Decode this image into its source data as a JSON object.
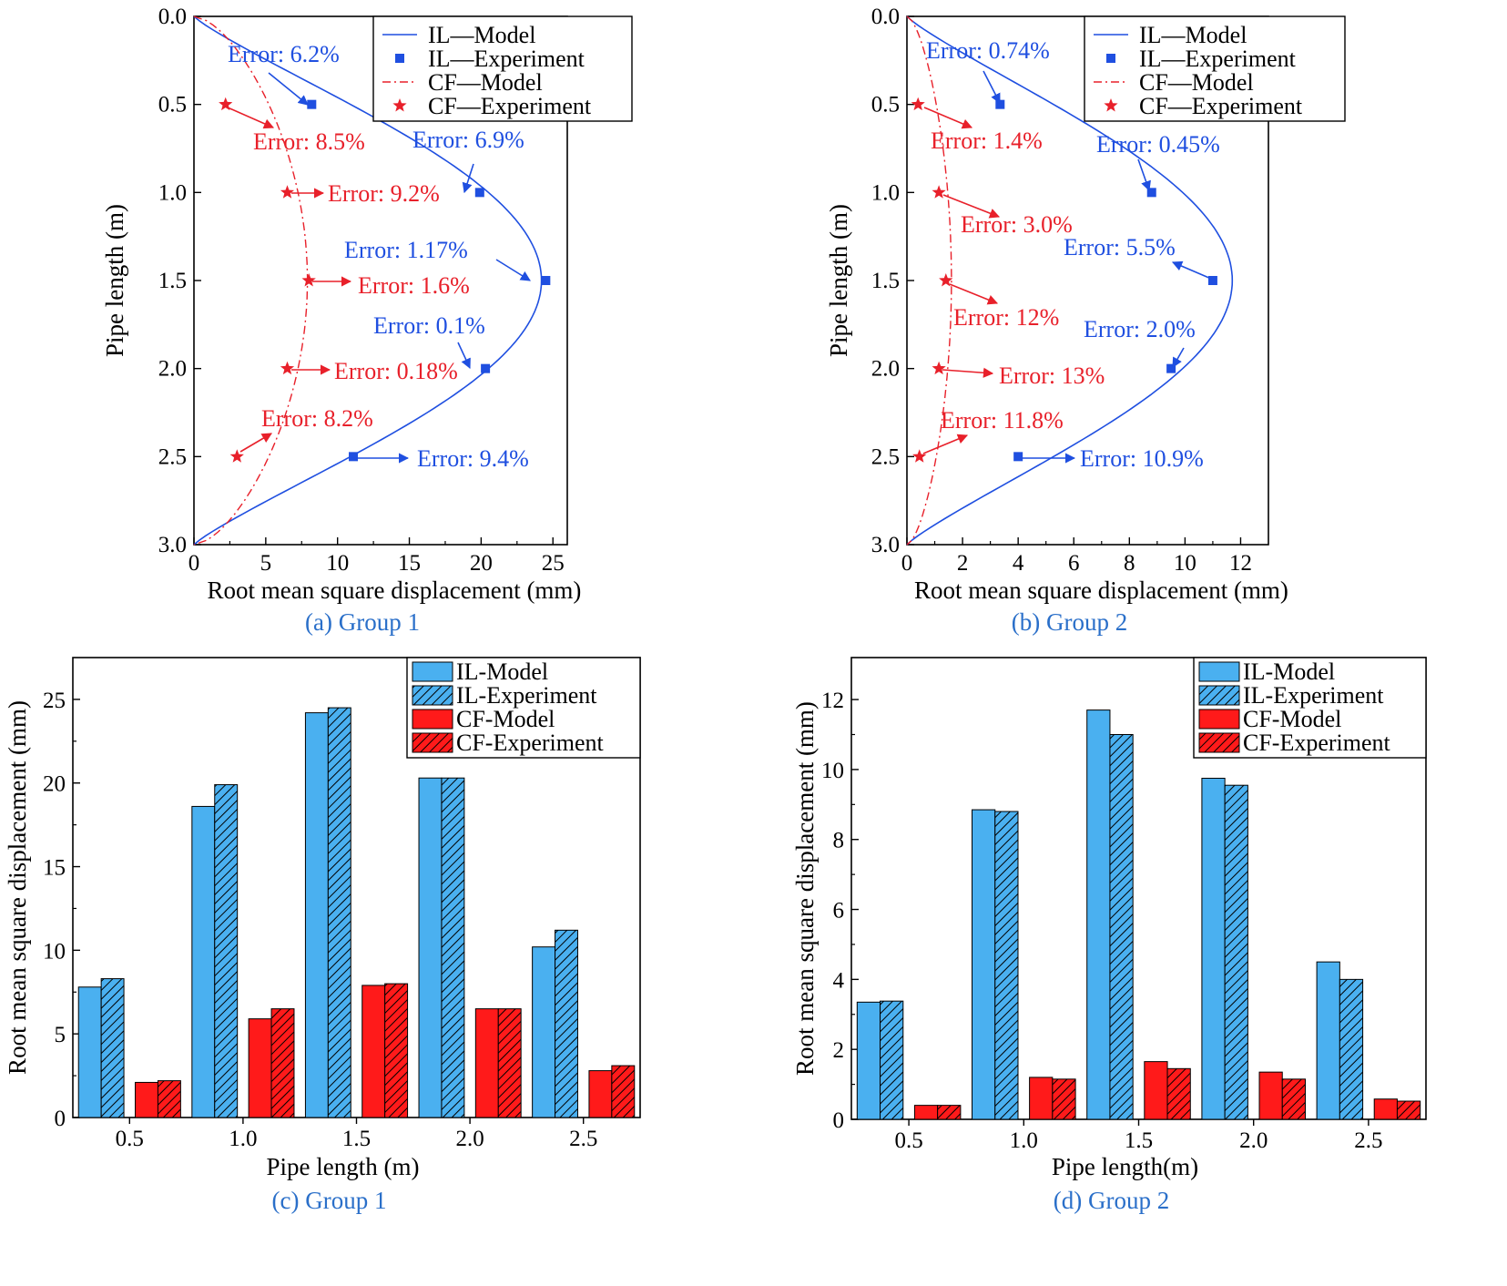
{
  "colors": {
    "il": "#1f4fe0",
    "cf": "#e8202a",
    "il_bar": "#4ab0f0",
    "cf_bar": "#ff1a1a",
    "caption": "#2a6fc9"
  },
  "chart_data": [
    {
      "id": "a",
      "type": "line",
      "caption": "(a) Group 1",
      "xlabel": "Root mean square displacement (mm)",
      "ylabel": "Pipe length (m)",
      "xlim": [
        0,
        26
      ],
      "ylim": [
        0.0,
        3.0
      ],
      "y_inverted": true,
      "xticks": [
        "0",
        "5",
        "10",
        "15",
        "20",
        "25"
      ],
      "yticks": [
        "0.0",
        "0.5",
        "1.0",
        "1.5",
        "2.0",
        "2.5",
        "3.0"
      ],
      "legend": [
        "IL—Model",
        "IL—Experiment",
        "CF—Model",
        "CF—Experiment"
      ],
      "legend_position": "top-right",
      "il_model_peak": 24.2,
      "cf_model_peak": 7.9,
      "series": [
        {
          "name": "IL—Experiment",
          "y": [
            0.5,
            1.0,
            1.5,
            2.0,
            2.5
          ],
          "x": [
            8.2,
            19.9,
            24.5,
            20.3,
            11.1
          ]
        },
        {
          "name": "CF—Experiment",
          "y": [
            0.5,
            1.0,
            1.5,
            2.0,
            2.5
          ],
          "x": [
            2.2,
            6.5,
            8.0,
            6.5,
            3.0
          ]
        }
      ],
      "annotations": [
        {
          "text": "Error: 6.2%",
          "series": "IL",
          "y": 0.5
        },
        {
          "text": "Error: 6.9%",
          "series": "IL",
          "y": 1.0
        },
        {
          "text": "Error: 1.17%",
          "series": "IL",
          "y": 1.5
        },
        {
          "text": "Error: 0.1%",
          "series": "IL",
          "y": 2.0
        },
        {
          "text": "Error: 9.4%",
          "series": "IL",
          "y": 2.5
        },
        {
          "text": "Error: 8.5%",
          "series": "CF",
          "y": 0.5
        },
        {
          "text": "Error: 9.2%",
          "series": "CF",
          "y": 1.0
        },
        {
          "text": "Error: 1.6%",
          "series": "CF",
          "y": 1.5
        },
        {
          "text": "Error: 0.18%",
          "series": "CF",
          "y": 2.0
        },
        {
          "text": "Error: 8.2%",
          "series": "CF",
          "y": 2.5
        }
      ]
    },
    {
      "id": "b",
      "type": "line",
      "caption": "(b) Group 2",
      "xlabel": "Root mean square displacement (mm)",
      "ylabel": "Pipe length (m)",
      "xlim": [
        0,
        13
      ],
      "ylim": [
        0.0,
        3.0
      ],
      "y_inverted": true,
      "xticks": [
        "0",
        "2",
        "4",
        "6",
        "8",
        "10",
        "12"
      ],
      "yticks": [
        "0.0",
        "0.5",
        "1.0",
        "1.5",
        "2.0",
        "2.5",
        "3.0"
      ],
      "legend": [
        "IL—Model",
        "IL—Experiment",
        "CF—Model",
        "CF—Experiment"
      ],
      "legend_position": "top-right",
      "il_model_peak": 11.7,
      "cf_model_peak": 1.6,
      "series": [
        {
          "name": "IL—Experiment",
          "y": [
            0.5,
            1.0,
            1.5,
            2.0,
            2.5
          ],
          "x": [
            3.35,
            8.8,
            11.0,
            9.5,
            4.0
          ]
        },
        {
          "name": "CF—Experiment",
          "y": [
            0.5,
            1.0,
            1.5,
            2.0,
            2.5
          ],
          "x": [
            0.4,
            1.15,
            1.4,
            1.15,
            0.45
          ]
        }
      ],
      "annotations": [
        {
          "text": "Error: 0.74%",
          "series": "IL",
          "y": 0.5
        },
        {
          "text": "Error: 0.45%",
          "series": "IL",
          "y": 1.0
        },
        {
          "text": "Error: 5.5%",
          "series": "IL",
          "y": 1.5
        },
        {
          "text": "Error: 2.0%",
          "series": "IL",
          "y": 2.0
        },
        {
          "text": "Error: 10.9%",
          "series": "IL",
          "y": 2.5
        },
        {
          "text": "Error: 1.4%",
          "series": "CF",
          "y": 0.5
        },
        {
          "text": "Error: 3.0%",
          "series": "CF",
          "y": 1.0
        },
        {
          "text": "Error: 12%",
          "series": "CF",
          "y": 1.5
        },
        {
          "text": "Error: 13%",
          "series": "CF",
          "y": 2.0
        },
        {
          "text": "Error: 11.8%",
          "series": "CF",
          "y": 2.5
        }
      ]
    },
    {
      "id": "c",
      "type": "bar",
      "caption": "(c) Group 1",
      "xlabel": "Pipe length (m)",
      "ylabel": "Root mean square displacement (mm)",
      "ylim": [
        0,
        27.5
      ],
      "yticks": [
        "0",
        "5",
        "10",
        "15",
        "20",
        "25"
      ],
      "categories": [
        "0.5",
        "1.0",
        "1.5",
        "2.0",
        "2.5"
      ],
      "legend_position": "top-right",
      "series": [
        {
          "name": "IL-Model",
          "values": [
            7.8,
            18.6,
            24.2,
            20.3,
            10.2
          ]
        },
        {
          "name": "IL-Experiment",
          "values": [
            8.3,
            19.9,
            24.5,
            20.3,
            11.2
          ]
        },
        {
          "name": "CF-Model",
          "values": [
            2.1,
            5.9,
            7.9,
            6.5,
            2.8
          ]
        },
        {
          "name": "CF-Experiment",
          "values": [
            2.2,
            6.5,
            8.0,
            6.5,
            3.1
          ]
        }
      ]
    },
    {
      "id": "d",
      "type": "bar",
      "caption": "(d) Group 2",
      "xlabel": "Pipe length(m)",
      "ylabel": "Root mean square displacement (mm)",
      "ylim": [
        0,
        13.2
      ],
      "yticks": [
        "0",
        "2",
        "4",
        "6",
        "8",
        "10",
        "12"
      ],
      "categories": [
        "0.5",
        "1.0",
        "1.5",
        "2.0",
        "2.5"
      ],
      "legend_position": "top-right",
      "series": [
        {
          "name": "IL-Model",
          "values": [
            3.35,
            8.85,
            11.7,
            9.75,
            4.5
          ]
        },
        {
          "name": "IL-Experiment",
          "values": [
            3.38,
            8.8,
            11.0,
            9.55,
            4.0
          ]
        },
        {
          "name": "CF-Model",
          "values": [
            0.4,
            1.2,
            1.65,
            1.35,
            0.58
          ]
        },
        {
          "name": "CF-Experiment",
          "values": [
            0.4,
            1.15,
            1.45,
            1.15,
            0.52
          ]
        }
      ]
    }
  ]
}
